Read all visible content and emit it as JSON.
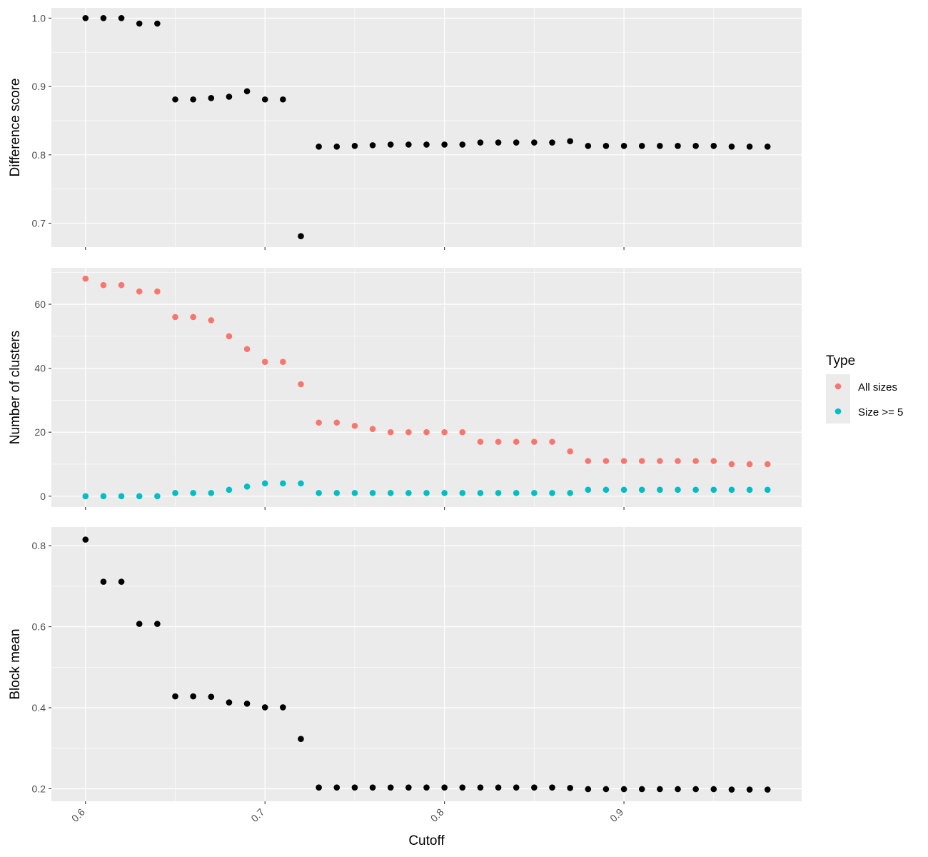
{
  "chart_data": {
    "type": "scatter",
    "x_label": "Cutoff",
    "x_ticks": [
      "0.6",
      "0.7",
      "0.8",
      "0.9"
    ],
    "xlim": [
      0.581,
      0.999
    ],
    "x": [
      0.6,
      0.61,
      0.62,
      0.63,
      0.64,
      0.65,
      0.66,
      0.67,
      0.68,
      0.69,
      0.7,
      0.71,
      0.72,
      0.73,
      0.74,
      0.75,
      0.76,
      0.77,
      0.78,
      0.79,
      0.8,
      0.81,
      0.82,
      0.83,
      0.84,
      0.85,
      0.86,
      0.87,
      0.88,
      0.89,
      0.9,
      0.91,
      0.92,
      0.93,
      0.94,
      0.95,
      0.96,
      0.97,
      0.98
    ],
    "colors": {
      "panel_bg": "#ebebeb",
      "grid": "#ffffff",
      "point": "#000000",
      "all_sizes": "#f8766d",
      "size_ge_5": "#00bfc4"
    },
    "panels": [
      {
        "ylabel": "Difference score",
        "ylim": [
          0.665,
          1.015
        ],
        "y_ticks": [
          "0.7",
          "0.8",
          "0.9",
          "1.0"
        ],
        "series": [
          {
            "color": "#000000",
            "values": [
              1.0,
              1.0,
              1.0,
              0.992,
              0.992,
              0.881,
              0.881,
              0.883,
              0.885,
              0.893,
              0.881,
              0.881,
              0.681,
              0.812,
              0.812,
              0.813,
              0.814,
              0.815,
              0.815,
              0.815,
              0.815,
              0.815,
              0.818,
              0.818,
              0.818,
              0.818,
              0.818,
              0.82,
              0.813,
              0.813,
              0.813,
              0.813,
              0.813,
              0.813,
              0.813,
              0.813,
              0.812,
              0.812,
              0.812
            ]
          }
        ]
      },
      {
        "ylabel": "Number of clusters",
        "ylim": [
          -3.4,
          71.4
        ],
        "y_ticks": [
          "0",
          "20",
          "40",
          "60"
        ],
        "series": [
          {
            "name": "All sizes",
            "color": "#f8766d",
            "values": [
              68,
              66,
              66,
              64,
              64,
              56,
              56,
              55,
              50,
              46,
              42,
              42,
              35,
              23,
              23,
              22,
              21,
              20,
              20,
              20,
              20,
              20,
              17,
              17,
              17,
              17,
              17,
              14,
              11,
              11,
              11,
              11,
              11,
              11,
              11,
              11,
              10,
              10,
              10
            ]
          },
          {
            "name": "Size >= 5",
            "color": "#00bfc4",
            "values": [
              0,
              0,
              0,
              0,
              0,
              1,
              1,
              1,
              2,
              3,
              4,
              4,
              4,
              1,
              1,
              1,
              1,
              1,
              1,
              1,
              1,
              1,
              1,
              1,
              1,
              1,
              1,
              1,
              2,
              2,
              2,
              2,
              2,
              2,
              2,
              2,
              2,
              2,
              2
            ]
          }
        ]
      },
      {
        "ylabel": "Block mean",
        "ylim": [
          0.169,
          0.846
        ],
        "y_ticks": [
          "0.2",
          "0.4",
          "0.6",
          "0.8"
        ],
        "series": [
          {
            "color": "#000000",
            "values": [
              0.815,
              0.711,
              0.711,
              0.607,
              0.607,
              0.428,
              0.428,
              0.427,
              0.413,
              0.41,
              0.401,
              0.401,
              0.323,
              0.203,
              0.203,
              0.203,
              0.203,
              0.203,
              0.203,
              0.203,
              0.203,
              0.203,
              0.203,
              0.203,
              0.203,
              0.203,
              0.203,
              0.202,
              0.199,
              0.199,
              0.199,
              0.199,
              0.199,
              0.199,
              0.199,
              0.199,
              0.198,
              0.198,
              0.198
            ]
          }
        ]
      }
    ],
    "legend": {
      "title": "Type",
      "placement": "right",
      "items": [
        {
          "label": "All sizes",
          "color": "#f8766d"
        },
        {
          "label": "Size >= 5",
          "color": "#00bfc4"
        }
      ]
    }
  }
}
